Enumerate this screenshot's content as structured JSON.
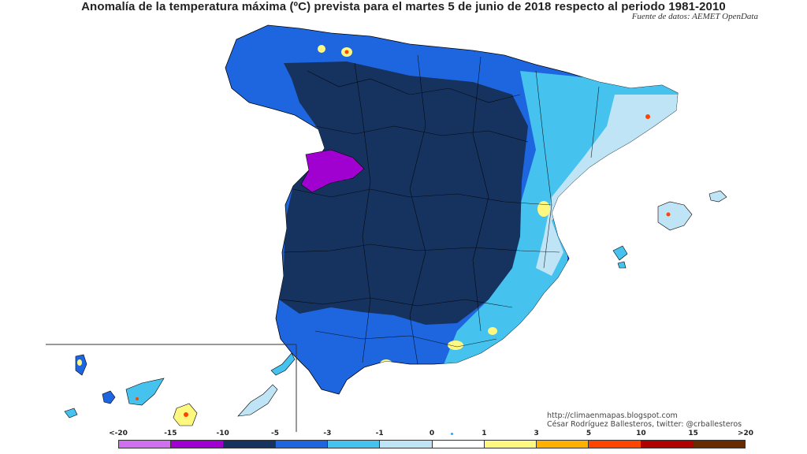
{
  "title": "Anomalía de la temperatura máxima (ºC) prevista para el martes 5 de junio de 2018 respecto al periodo 1981-2010",
  "source": "Fuente de datos: AEMET OpenData",
  "credits": {
    "url": "http://climaenmapas.blogspot.com",
    "author": "César Rodríguez Ballesteros, twitter: @crballesteros"
  },
  "legend": {
    "labels": [
      "<-20",
      "-15",
      "-10",
      "-5",
      "-3",
      "-1",
      "0",
      "1",
      "3",
      "5",
      "10",
      "15",
      ">20"
    ],
    "colors": [
      "#d070f0",
      "#a000d0",
      "#16335f",
      "#1e66e0",
      "#46c2ee",
      "#bfe4f6",
      "#ffffff",
      "#fff880",
      "#ffb000",
      "#ff4400",
      "#b00000",
      "#6a2a00"
    ]
  },
  "map_colors": {
    "very_cold": "#16335f",
    "cold": "#1e66e0",
    "cool": "#46c2ee",
    "slightly_cool": "#bfe4f6",
    "extreme_cold": "#a000d0",
    "warm_spot": "#fff880",
    "hot_spot": "#ff4400",
    "borders": "#000000"
  }
}
